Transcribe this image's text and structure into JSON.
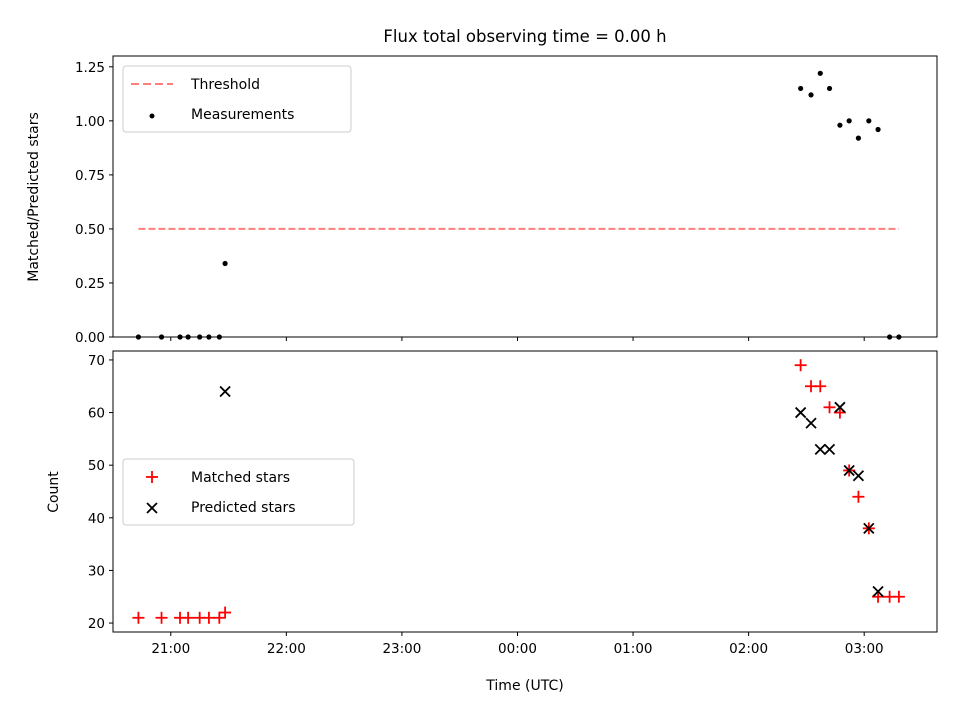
{
  "chart_data": {
    "type": "scatter",
    "title": "Flux total observing time = 0.00 h",
    "xlabel": "Time (UTC)",
    "x_ticks": [
      "21:00",
      "22:00",
      "23:00",
      "00:00",
      "01:00",
      "02:00",
      "03:00"
    ],
    "x_tick_hours": [
      21,
      22,
      23,
      24,
      25,
      26,
      27
    ],
    "xlim_hours": [
      20.5,
      27.63
    ],
    "panels": [
      {
        "id": "ratio",
        "ylabel": "Matched/Predicted stars",
        "ylim": [
          0,
          1.3
        ],
        "y_ticks": [
          "0.00",
          "0.25",
          "0.50",
          "0.75",
          "1.00",
          "1.25"
        ],
        "y_tick_values": [
          0,
          0.25,
          0.5,
          0.75,
          1.0,
          1.25
        ],
        "legend": {
          "position": "upper left",
          "entries": [
            "Threshold",
            "Measurements"
          ]
        },
        "series": [
          {
            "name": "Threshold",
            "kind": "dashed-line",
            "color": "#ff7f7f",
            "x_hours": [
              20.72,
              27.3
            ],
            "y": [
              0.5,
              0.5
            ]
          },
          {
            "name": "Measurements",
            "kind": "dot",
            "color": "#000000",
            "x_hours": [
              20.72,
              20.92,
              21.08,
              21.15,
              21.25,
              21.33,
              21.42,
              21.47,
              26.45,
              26.54,
              26.62,
              26.7,
              26.79,
              26.87,
              26.95,
              27.04,
              27.12,
              27.22,
              27.3
            ],
            "y": [
              0,
              0,
              0,
              0,
              0,
              0,
              0,
              0.34,
              1.15,
              1.12,
              1.22,
              1.15,
              0.98,
              1.0,
              0.92,
              1.0,
              0.96,
              0,
              0
            ]
          }
        ]
      },
      {
        "id": "counts",
        "ylabel": "Count",
        "ylim": [
          18.3,
          71.7
        ],
        "y_ticks": [
          "20",
          "30",
          "40",
          "50",
          "60",
          "70"
        ],
        "y_tick_values": [
          20,
          30,
          40,
          50,
          60,
          70
        ],
        "legend": {
          "position": "center left",
          "entries": [
            "Matched stars",
            "Predicted stars"
          ]
        },
        "series": [
          {
            "name": "Matched stars",
            "kind": "plus",
            "color": "#ff0000",
            "x_hours": [
              20.72,
              20.92,
              21.08,
              21.15,
              21.25,
              21.33,
              21.42,
              21.47,
              26.45,
              26.54,
              26.62,
              26.7,
              26.79,
              26.87,
              26.95,
              27.04,
              27.12,
              27.22,
              27.3
            ],
            "y": [
              21,
              21,
              21,
              21,
              21,
              21,
              21,
              22,
              69,
              65,
              65,
              61,
              60,
              49,
              44,
              38,
              25,
              25,
              25
            ]
          },
          {
            "name": "Predicted stars",
            "kind": "cross",
            "color": "#000000",
            "x_hours": [
              21.47,
              26.45,
              26.54,
              26.62,
              26.7,
              26.79,
              26.87,
              26.95,
              27.04,
              27.12
            ],
            "y": [
              64,
              60,
              58,
              53,
              53,
              61,
              49,
              48,
              38,
              26
            ]
          }
        ]
      }
    ]
  }
}
